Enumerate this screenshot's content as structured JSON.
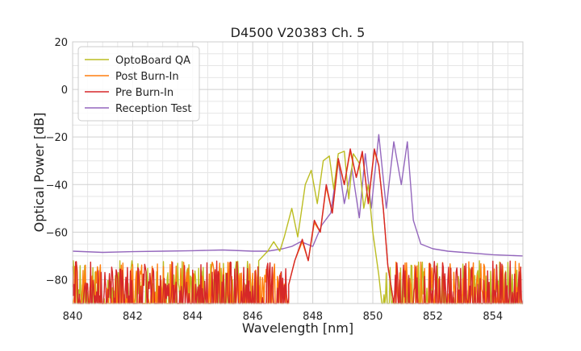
{
  "chart_data": {
    "type": "line",
    "title": "D4500 V20383 Ch. 5",
    "xlabel": "Wavelength [nm]",
    "ylabel": "Optical Power [dB]",
    "xlim": [
      840,
      855
    ],
    "ylim": [
      -90,
      20
    ],
    "xticks": [
      840,
      842,
      844,
      846,
      848,
      850,
      852,
      854
    ],
    "yticks": [
      20,
      0,
      -20,
      -40,
      -60,
      -80
    ],
    "grid": true,
    "legend_position": "top-left",
    "noise_floor_dB": -90,
    "series": [
      {
        "name": "OptoBoard QA",
        "color": "#bcbd22",
        "noise_until_nm": 846.2,
        "noise_from_nm": 850.3,
        "points": [
          [
            846.2,
            -72
          ],
          [
            846.5,
            -68
          ],
          [
            846.7,
            -64
          ],
          [
            846.9,
            -68
          ],
          [
            847.05,
            -62
          ],
          [
            847.3,
            -50
          ],
          [
            847.5,
            -62
          ],
          [
            847.75,
            -40
          ],
          [
            847.95,
            -34
          ],
          [
            848.15,
            -48
          ],
          [
            848.35,
            -30
          ],
          [
            848.55,
            -28
          ],
          [
            848.7,
            -42
          ],
          [
            848.85,
            -27
          ],
          [
            849.05,
            -26
          ],
          [
            849.2,
            -46
          ],
          [
            849.35,
            -27
          ],
          [
            849.55,
            -31
          ],
          [
            849.7,
            -50
          ],
          [
            849.85,
            -40
          ],
          [
            850.0,
            -60
          ],
          [
            850.2,
            -78
          ],
          [
            850.3,
            -90
          ]
        ]
      },
      {
        "name": "Post Burn-In",
        "color": "#ff7f0e",
        "noise_until_nm": 847.2,
        "noise_from_nm": 850.7,
        "points": [
          [
            847.2,
            -82
          ],
          [
            847.4,
            -72
          ],
          [
            847.65,
            -64
          ],
          [
            847.85,
            -72
          ],
          [
            848.05,
            -56
          ],
          [
            848.25,
            -60
          ],
          [
            848.45,
            -41
          ],
          [
            848.65,
            -52
          ],
          [
            848.85,
            -30
          ],
          [
            849.05,
            -40
          ],
          [
            849.25,
            -26
          ],
          [
            849.45,
            -37
          ],
          [
            849.65,
            -27
          ],
          [
            849.85,
            -48
          ],
          [
            850.05,
            -26
          ],
          [
            850.2,
            -32
          ],
          [
            850.35,
            -50
          ],
          [
            850.5,
            -74
          ],
          [
            850.7,
            -90
          ]
        ]
      },
      {
        "name": "Pre Burn-In",
        "color": "#d62728",
        "noise_until_nm": 847.2,
        "noise_from_nm": 850.7,
        "points": [
          [
            847.2,
            -82
          ],
          [
            847.4,
            -72
          ],
          [
            847.65,
            -63
          ],
          [
            847.85,
            -72
          ],
          [
            848.05,
            -55
          ],
          [
            848.25,
            -60
          ],
          [
            848.45,
            -40
          ],
          [
            848.65,
            -52
          ],
          [
            848.85,
            -29
          ],
          [
            849.05,
            -40
          ],
          [
            849.25,
            -25
          ],
          [
            849.45,
            -37
          ],
          [
            849.65,
            -26
          ],
          [
            849.85,
            -48
          ],
          [
            850.05,
            -25
          ],
          [
            850.2,
            -32
          ],
          [
            850.35,
            -50
          ],
          [
            850.5,
            -74
          ],
          [
            850.7,
            -90
          ]
        ]
      },
      {
        "name": "Reception Test",
        "color": "#9467bd",
        "points": [
          [
            840,
            -68
          ],
          [
            841,
            -68.5
          ],
          [
            842,
            -68.2
          ],
          [
            843,
            -68
          ],
          [
            844,
            -67.8
          ],
          [
            845,
            -67.5
          ],
          [
            846,
            -68
          ],
          [
            846.5,
            -68
          ],
          [
            847,
            -67
          ],
          [
            847.3,
            -66
          ],
          [
            847.6,
            -64
          ],
          [
            848.0,
            -66
          ],
          [
            848.3,
            -57
          ],
          [
            848.6,
            -52
          ],
          [
            848.85,
            -30
          ],
          [
            849.05,
            -48
          ],
          [
            849.3,
            -33
          ],
          [
            849.55,
            -54
          ],
          [
            849.75,
            -27
          ],
          [
            849.95,
            -50
          ],
          [
            850.2,
            -19
          ],
          [
            850.45,
            -50
          ],
          [
            850.7,
            -22
          ],
          [
            850.95,
            -40
          ],
          [
            851.15,
            -22
          ],
          [
            851.35,
            -55
          ],
          [
            851.6,
            -65
          ],
          [
            852,
            -67
          ],
          [
            852.5,
            -68
          ],
          [
            853,
            -68.5
          ],
          [
            854,
            -69.5
          ],
          [
            855,
            -70
          ]
        ]
      }
    ]
  }
}
